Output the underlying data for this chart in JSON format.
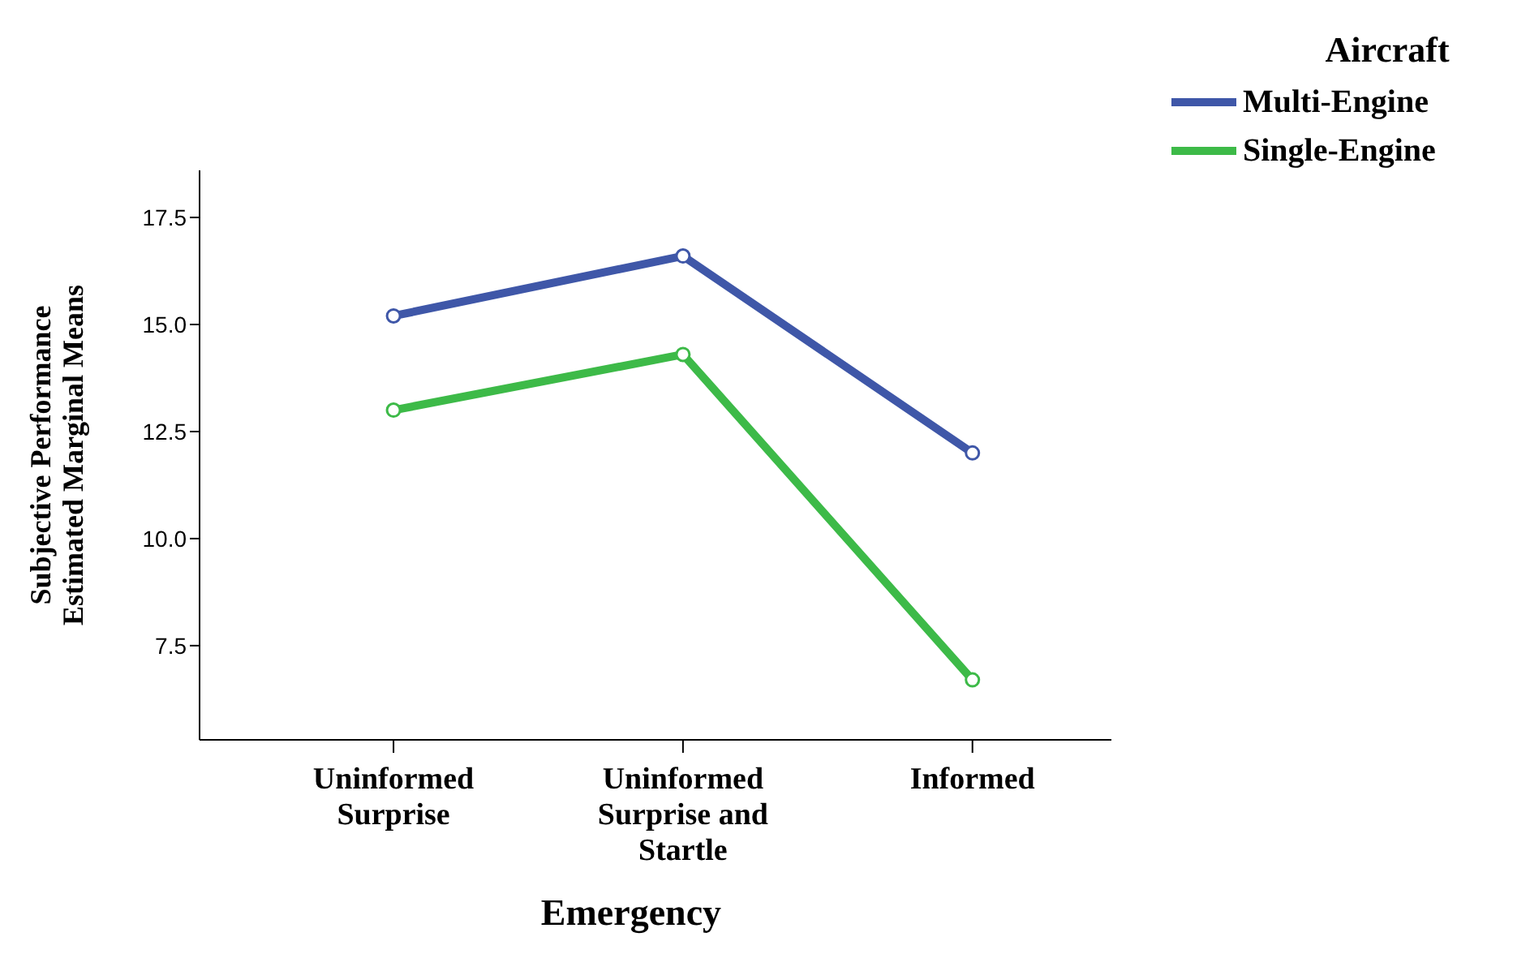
{
  "chart_data": {
    "type": "line",
    "xlabel": "Emergency",
    "ylabel": "Subjective Performance\nEstimated Marginal Means",
    "legend_title": "Aircraft",
    "categories": [
      "Uninformed Surprise",
      "Uninformed Surprise and Startle",
      "Informed"
    ],
    "series": [
      {
        "name": "Multi-Engine",
        "color": "#3f57a8",
        "values": [
          15.2,
          16.6,
          12.0
        ]
      },
      {
        "name": "Single-Engine",
        "color": "#3dba48",
        "values": [
          13.0,
          14.3,
          6.7
        ]
      }
    ],
    "ylim": [
      5.3,
      18.6
    ],
    "yticks": [
      7.5,
      {
        "value": 10,
        "label": "10.0"
      },
      12.5,
      {
        "value": 15,
        "label": "15.0"
      },
      17.5
    ],
    "grid": false,
    "legend": "top right",
    "marker": "circle",
    "line_style": "solid"
  }
}
